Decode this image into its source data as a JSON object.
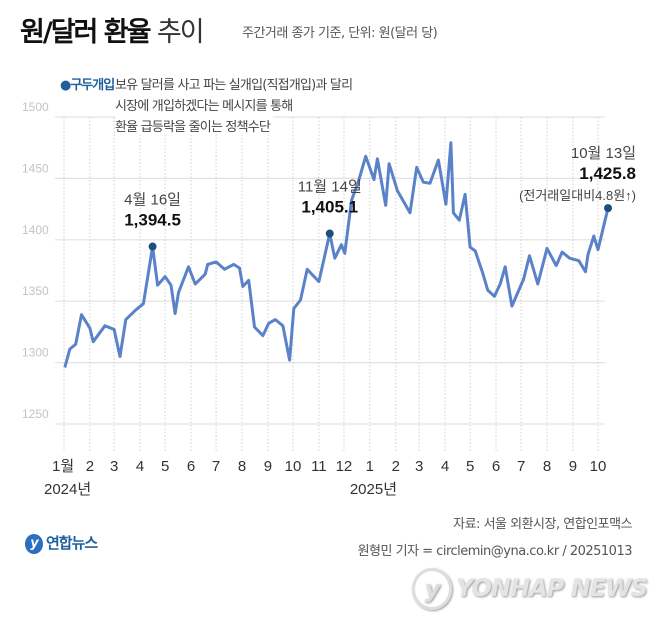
{
  "header": {
    "title_bold": "원/달러 환율",
    "title_light": "추이",
    "subtitle": "주간거래 종가 기준, 단위: 원(달러 당)"
  },
  "note": {
    "key": "●구두개입",
    "lines": [
      "보유 달러를 사고 파는 실개입(직접개입)과 달리",
      "시장에 개입하겠다는 메시지를 통해",
      "환율 급등락을 줄이는 정책수단"
    ]
  },
  "chart_data": {
    "type": "line",
    "title": "원/달러 환율 추이",
    "ylabel": "",
    "xlabel": "",
    "ylim": [
      1250,
      1500
    ],
    "yticks": [
      1250,
      1300,
      1350,
      1400,
      1450,
      1500
    ],
    "grid": true,
    "xtick_labels": [
      "1월",
      "2",
      "3",
      "4",
      "5",
      "6",
      "7",
      "8",
      "9",
      "10",
      "11",
      "12",
      "1",
      "2",
      "3",
      "4",
      "5",
      "6",
      "7",
      "8",
      "9",
      "10"
    ],
    "xtick_dates": [
      "2024-01-01",
      "2024-02-01",
      "2024-03-01",
      "2024-04-01",
      "2024-05-01",
      "2024-06-01",
      "2024-07-01",
      "2024-08-01",
      "2024-09-01",
      "2024-10-01",
      "2024-11-01",
      "2024-12-01",
      "2025-01-01",
      "2025-02-01",
      "2025-03-01",
      "2025-04-01",
      "2025-05-01",
      "2025-06-01",
      "2025-07-01",
      "2025-08-01",
      "2025-09-01",
      "2025-10-01"
    ],
    "year_labels": [
      {
        "label": "2024년",
        "date": "2024-01-01"
      },
      {
        "label": "2025년",
        "date": "2025-01-01"
      }
    ],
    "color": "#5b82c8",
    "marker_color": "#1a4f80",
    "series": [
      {
        "x": [
          "2024-01-02",
          "2024-01-08",
          "2024-01-15",
          "2024-01-22",
          "2024-02-01",
          "2024-02-05",
          "2024-02-19",
          "2024-03-01",
          "2024-03-08",
          "2024-03-15",
          "2024-03-27",
          "2024-04-05",
          "2024-04-16",
          "2024-04-22",
          "2024-05-01",
          "2024-05-08",
          "2024-05-13",
          "2024-05-17",
          "2024-05-29",
          "2024-06-06",
          "2024-06-18",
          "2024-06-21",
          "2024-07-01",
          "2024-07-11",
          "2024-07-22",
          "2024-07-29",
          "2024-08-02",
          "2024-08-09",
          "2024-08-16",
          "2024-08-26",
          "2024-09-02",
          "2024-09-10",
          "2024-09-19",
          "2024-09-27",
          "2024-10-02",
          "2024-10-10",
          "2024-10-18",
          "2024-11-01",
          "2024-11-14",
          "2024-11-20",
          "2024-11-28",
          "2024-12-02",
          "2024-12-10",
          "2024-12-19",
          "2024-12-27",
          "2025-01-06",
          "2025-01-10",
          "2025-01-20",
          "2025-01-24",
          "2025-02-03",
          "2025-02-18",
          "2025-02-26",
          "2025-03-06",
          "2025-03-14",
          "2025-03-24",
          "2025-04-02",
          "2025-04-08",
          "2025-04-11",
          "2025-04-18",
          "2025-04-25",
          "2025-05-01",
          "2025-05-07",
          "2025-05-16",
          "2025-05-22",
          "2025-05-30",
          "2025-06-06",
          "2025-06-12",
          "2025-06-20",
          "2025-07-04",
          "2025-07-11",
          "2025-07-21",
          "2025-08-01",
          "2025-08-12",
          "2025-08-19",
          "2025-08-28",
          "2025-09-08",
          "2025-09-16",
          "2025-09-19",
          "2025-09-26",
          "2025-10-01",
          "2025-10-13"
        ],
        "y": [
          1296,
          1311,
          1315,
          1339,
          1328,
          1317,
          1330,
          1327,
          1305,
          1335,
          1343,
          1348,
          1394.5,
          1363,
          1370,
          1363,
          1340,
          1357,
          1378,
          1364,
          1372,
          1380,
          1382,
          1376,
          1380,
          1377,
          1362,
          1367,
          1329,
          1322,
          1332,
          1335,
          1330,
          1302,
          1344,
          1351,
          1376,
          1366,
          1405.1,
          1385,
          1396,
          1389,
          1432,
          1449,
          1468,
          1449,
          1466,
          1428,
          1462,
          1440,
          1422,
          1459,
          1447,
          1446,
          1465,
          1429,
          1479,
          1422,
          1416,
          1437,
          1394,
          1391,
          1373,
          1359,
          1354,
          1364,
          1378,
          1346,
          1368,
          1387,
          1364,
          1393,
          1379,
          1390,
          1385,
          1383,
          1374,
          1388,
          1403,
          1392,
          1425.8
        ]
      }
    ],
    "annotations": [
      {
        "date_label": "4월 16일",
        "value_label": "1,394.5",
        "date": "2024-04-16",
        "value": 1394.5
      },
      {
        "date_label": "11월 14일",
        "value_label": "1,405.1",
        "date": "2024-11-14",
        "value": 1405.1
      },
      {
        "date_label": "10월 13일",
        "value_label": "1,425.8",
        "extra": "(전거래일대비4.8원↑)",
        "date": "2025-10-13",
        "value": 1425.8
      }
    ]
  },
  "footer": {
    "source": "자료: 서울 외환시장, 연합인포맥스",
    "credit": "원형민 기자 = circlemin@yna.co.kr / 20251013",
    "logo": "연합뉴스",
    "watermark": "YONHAP NEWS"
  }
}
